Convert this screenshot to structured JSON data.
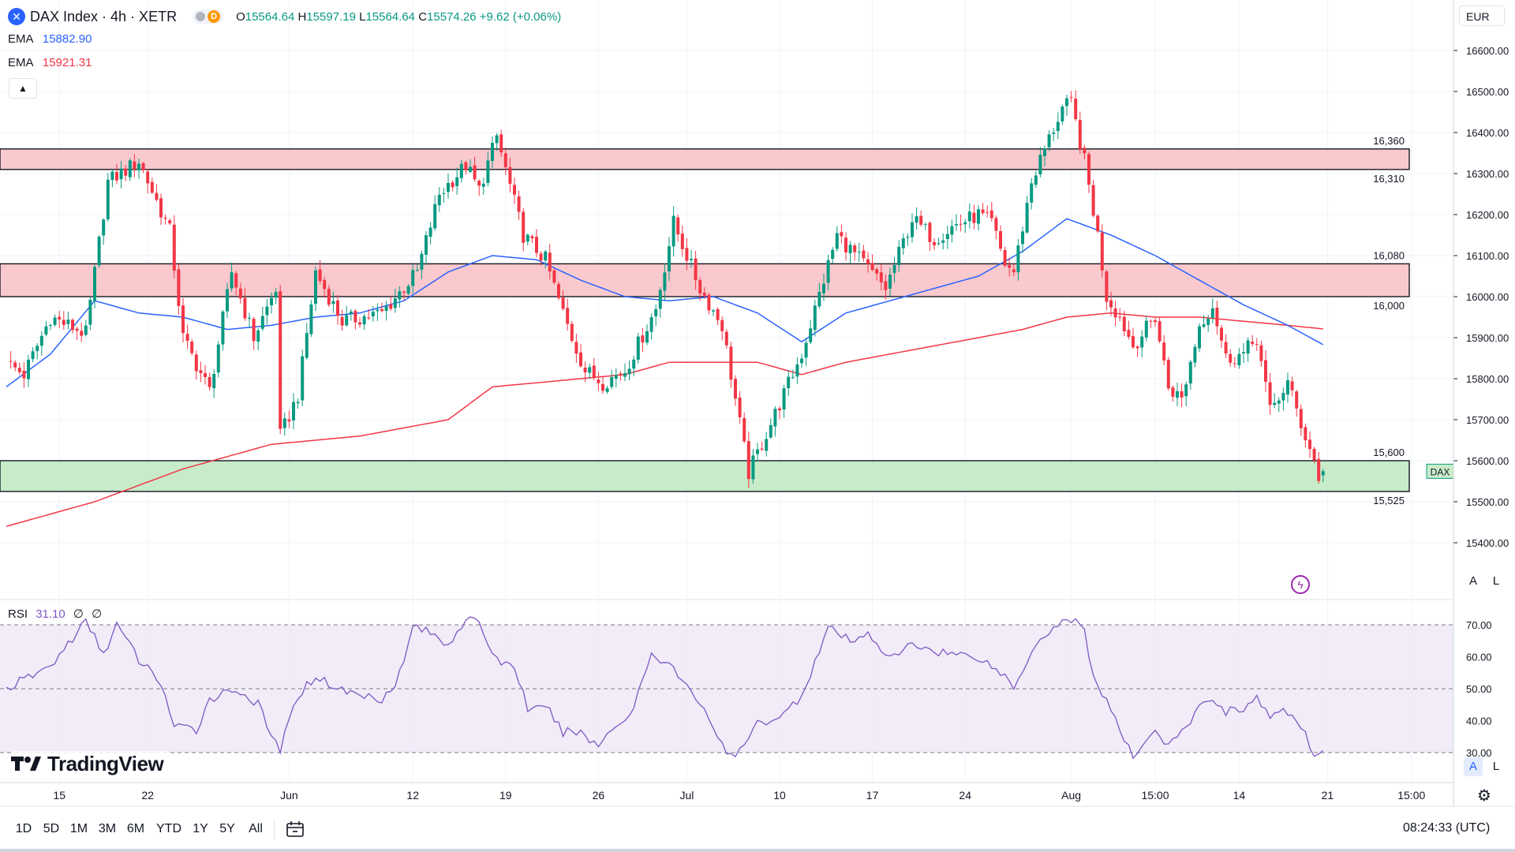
{
  "header": {
    "symbol_icon": "x-circle-icon",
    "symbol": "DAX Index · 4h · XETR",
    "badge": "D",
    "ohlc": {
      "o_label": "O",
      "o": "15564.64",
      "h_label": "H",
      "h": "15597.19",
      "l_label": "L",
      "l": "15564.64",
      "c_label": "C",
      "c": "15574.26",
      "change": "+9.62 (+0.06%)"
    },
    "indicators": [
      {
        "name": "EMA",
        "value": "15882.90",
        "color": "#2962ff"
      },
      {
        "name": "EMA",
        "value": "15921.31",
        "color": "#f23645"
      }
    ],
    "collapse_icon": "chevron-up-icon",
    "currency": "EUR"
  },
  "rsi_legend": {
    "name": "RSI",
    "value": "31.10",
    "extra1": "∅",
    "extra2": "∅",
    "color": "#7e57c2"
  },
  "logo": {
    "icon": "tradingview-logo-icon",
    "text": "TradingView"
  },
  "timeframes": [
    "1D",
    "5D",
    "1M",
    "3M",
    "6M",
    "YTD",
    "1Y",
    "5Y",
    "All"
  ],
  "calendar_icon": "calendar-range-icon",
  "clock": "08:24:33 (UTC)",
  "scale_buttons": {
    "auto": "A",
    "log": "L"
  },
  "settings_icon": "gear-icon",
  "lightning_icon": "lightning-icon",
  "price_tag": "DAX",
  "colors": {
    "up": "#089981",
    "down": "#f23645",
    "ema_fast": "#2962ff",
    "ema_slow": "#f23645",
    "resistance_fill": "#f9c9cd",
    "support_fill": "#c8ecc9",
    "rsi_line": "#7e57c2",
    "rsi_band": "#ede7f6"
  },
  "chart_data": {
    "type": "candlestick",
    "title": "DAX Index · 4h · XETR",
    "ylim": [
      15350,
      16650
    ],
    "y_ticks": [
      "16600.00",
      "16500.00",
      "16400.00",
      "16300.00",
      "16200.00",
      "16100.00",
      "16000.00",
      "15900.00",
      "15800.00",
      "15700.00",
      "15600.00",
      "15500.00",
      "15400.00"
    ],
    "x_tick_labels": [
      {
        "label": "15",
        "bar": 12
      },
      {
        "label": "22",
        "bar": 32
      },
      {
        "label": "Jun",
        "bar": 64
      },
      {
        "label": "12",
        "bar": 92
      },
      {
        "label": "19",
        "bar": 113
      },
      {
        "label": "26",
        "bar": 134
      },
      {
        "label": "Jul",
        "bar": 154
      },
      {
        "label": "10",
        "bar": 175
      },
      {
        "label": "17",
        "bar": 196
      },
      {
        "label": "24",
        "bar": 217
      },
      {
        "label": "Aug",
        "bar": 241
      },
      {
        "label": "15:00",
        "bar": 260
      },
      {
        "label": "14",
        "bar": 279
      },
      {
        "label": "21",
        "bar": 299
      },
      {
        "label": "15:00",
        "bar": 318
      }
    ],
    "zones": [
      {
        "type": "resistance",
        "top": 16360,
        "bottom": 16310,
        "top_label": "16,360",
        "bottom_label": "16,310"
      },
      {
        "type": "resistance",
        "top": 16080,
        "bottom": 16000,
        "top_label": "16,080",
        "bottom_label": "16,000"
      },
      {
        "type": "support",
        "top": 15600,
        "bottom": 15525,
        "top_label": "15,600",
        "bottom_label": "15,525"
      }
    ],
    "anchors": [
      [
        0,
        15840
      ],
      [
        4,
        15810
      ],
      [
        10,
        15950
      ],
      [
        18,
        15910
      ],
      [
        23,
        16280
      ],
      [
        30,
        16330
      ],
      [
        37,
        16160
      ],
      [
        40,
        15900
      ],
      [
        46,
        15770
      ],
      [
        51,
        16060
      ],
      [
        56,
        15900
      ],
      [
        61,
        16020
      ],
      [
        62,
        15660
      ],
      [
        66,
        15760
      ],
      [
        70,
        16060
      ],
      [
        76,
        15940
      ],
      [
        85,
        15960
      ],
      [
        93,
        16060
      ],
      [
        98,
        16250
      ],
      [
        104,
        16320
      ],
      [
        107,
        16260
      ],
      [
        111,
        16390
      ],
      [
        117,
        16150
      ],
      [
        122,
        16090
      ],
      [
        126,
        15960
      ],
      [
        128,
        15900
      ],
      [
        131,
        15820
      ],
      [
        135,
        15790
      ],
      [
        140,
        15820
      ],
      [
        147,
        15970
      ],
      [
        151,
        16180
      ],
      [
        157,
        16020
      ],
      [
        162,
        15930
      ],
      [
        168,
        15570
      ],
      [
        173,
        15690
      ],
      [
        180,
        15860
      ],
      [
        188,
        16150
      ],
      [
        194,
        16080
      ],
      [
        199,
        16020
      ],
      [
        205,
        16190
      ],
      [
        210,
        16140
      ],
      [
        214,
        16170
      ],
      [
        220,
        16200
      ],
      [
        223,
        16180
      ],
      [
        226,
        16080
      ],
      [
        228,
        16060
      ],
      [
        232,
        16280
      ],
      [
        235,
        16360
      ],
      [
        239,
        16460
      ],
      [
        241,
        16470
      ],
      [
        244,
        16330
      ],
      [
        247,
        16150
      ],
      [
        249,
        16000
      ],
      [
        252,
        15950
      ],
      [
        255,
        15880
      ],
      [
        260,
        15950
      ],
      [
        263,
        15780
      ],
      [
        266,
        15750
      ],
      [
        270,
        15930
      ],
      [
        273,
        15980
      ],
      [
        276,
        15850
      ],
      [
        280,
        15860
      ],
      [
        283,
        15900
      ],
      [
        286,
        15720
      ],
      [
        290,
        15790
      ],
      [
        293,
        15690
      ],
      [
        296,
        15600
      ],
      [
        297,
        15560
      ],
      [
        298,
        15574
      ]
    ],
    "ema_fast": [
      [
        0,
        15780
      ],
      [
        10,
        15860
      ],
      [
        20,
        15990
      ],
      [
        30,
        15960
      ],
      [
        40,
        15950
      ],
      [
        50,
        15920
      ],
      [
        60,
        15930
      ],
      [
        70,
        15950
      ],
      [
        80,
        15960
      ],
      [
        90,
        15990
      ],
      [
        100,
        16060
      ],
      [
        110,
        16100
      ],
      [
        120,
        16090
      ],
      [
        130,
        16040
      ],
      [
        140,
        16000
      ],
      [
        150,
        15990
      ],
      [
        160,
        16000
      ],
      [
        170,
        15960
      ],
      [
        180,
        15890
      ],
      [
        190,
        15960
      ],
      [
        200,
        15990
      ],
      [
        210,
        16020
      ],
      [
        220,
        16050
      ],
      [
        230,
        16110
      ],
      [
        240,
        16190
      ],
      [
        250,
        16150
      ],
      [
        260,
        16100
      ],
      [
        270,
        16040
      ],
      [
        280,
        15980
      ],
      [
        290,
        15930
      ],
      [
        298,
        15882.9
      ]
    ],
    "ema_slow": [
      [
        0,
        15440
      ],
      [
        20,
        15500
      ],
      [
        40,
        15580
      ],
      [
        60,
        15640
      ],
      [
        80,
        15660
      ],
      [
        100,
        15700
      ],
      [
        110,
        15780
      ],
      [
        120,
        15790
      ],
      [
        130,
        15800
      ],
      [
        140,
        15810
      ],
      [
        150,
        15840
      ],
      [
        160,
        15840
      ],
      [
        170,
        15840
      ],
      [
        180,
        15810
      ],
      [
        190,
        15840
      ],
      [
        200,
        15860
      ],
      [
        210,
        15880
      ],
      [
        220,
        15900
      ],
      [
        230,
        15920
      ],
      [
        240,
        15950
      ],
      [
        250,
        15960
      ],
      [
        260,
        15950
      ],
      [
        270,
        15950
      ],
      [
        280,
        15940
      ],
      [
        290,
        15930
      ],
      [
        298,
        15921.31
      ]
    ],
    "rsi": {
      "ylim": [
        25,
        75
      ],
      "y_ticks": [
        "70.00",
        "60.00",
        "50.00",
        "40.00",
        "30.00"
      ],
      "bands": [
        70,
        50,
        30
      ],
      "anchors": [
        [
          0,
          50
        ],
        [
          10,
          57
        ],
        [
          18,
          71
        ],
        [
          22,
          61
        ],
        [
          25,
          70
        ],
        [
          30,
          59
        ],
        [
          35,
          52
        ],
        [
          38,
          38
        ],
        [
          43,
          37
        ],
        [
          46,
          47
        ],
        [
          52,
          50
        ],
        [
          57,
          45
        ],
        [
          60,
          35
        ],
        [
          62,
          31
        ],
        [
          66,
          48
        ],
        [
          70,
          54
        ],
        [
          75,
          50
        ],
        [
          80,
          48
        ],
        [
          85,
          47
        ],
        [
          88,
          52
        ],
        [
          90,
          58
        ],
        [
          92,
          70
        ],
        [
          95,
          68
        ],
        [
          100,
          64
        ],
        [
          104,
          72
        ],
        [
          107,
          70
        ],
        [
          111,
          59
        ],
        [
          115,
          57
        ],
        [
          118,
          44
        ],
        [
          123,
          43
        ],
        [
          126,
          36
        ],
        [
          129,
          37
        ],
        [
          134,
          32
        ],
        [
          137,
          38
        ],
        [
          141,
          41
        ],
        [
          146,
          61
        ],
        [
          150,
          58
        ],
        [
          153,
          52
        ],
        [
          158,
          44
        ],
        [
          163,
          29
        ],
        [
          166,
          30
        ],
        [
          170,
          39
        ],
        [
          176,
          42
        ],
        [
          180,
          48
        ],
        [
          186,
          69
        ],
        [
          192,
          64
        ],
        [
          195,
          68
        ],
        [
          200,
          59
        ],
        [
          205,
          64
        ],
        [
          210,
          62
        ],
        [
          214,
          61
        ],
        [
          220,
          60
        ],
        [
          226,
          54
        ],
        [
          228,
          50
        ],
        [
          232,
          62
        ],
        [
          234,
          66
        ],
        [
          239,
          71
        ],
        [
          241,
          72
        ],
        [
          244,
          68
        ],
        [
          246,
          54
        ],
        [
          249,
          46
        ],
        [
          252,
          37
        ],
        [
          255,
          28
        ],
        [
          257,
          33
        ],
        [
          260,
          37
        ],
        [
          263,
          32
        ],
        [
          266,
          36
        ],
        [
          270,
          44
        ],
        [
          273,
          47
        ],
        [
          276,
          43
        ],
        [
          280,
          44
        ],
        [
          283,
          47
        ],
        [
          286,
          41
        ],
        [
          290,
          43
        ],
        [
          293,
          38
        ],
        [
          296,
          30
        ],
        [
          298,
          31.1
        ]
      ]
    }
  }
}
